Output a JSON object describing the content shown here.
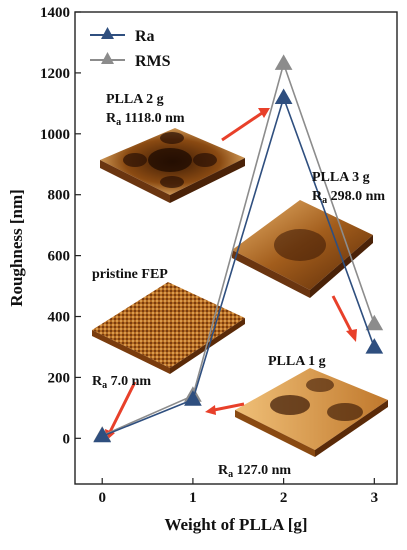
{
  "chart_data": {
    "type": "line",
    "title": "",
    "xlabel": "Weight of PLLA [g]",
    "ylabel": "Roughness [nm]",
    "x": [
      0,
      1,
      2,
      3
    ],
    "xlim": [
      -0.3,
      3.25
    ],
    "ylim": [
      -150,
      1400
    ],
    "yticks": [
      0,
      200,
      400,
      600,
      800,
      1000,
      1200,
      1400
    ],
    "xticks": [
      0,
      1,
      2,
      3
    ],
    "grid": false,
    "legend_position": "top-left",
    "series": [
      {
        "name": "Ra",
        "values": [
          7.0,
          127.0,
          1118.0,
          298.0
        ],
        "color": "#2f4f7f",
        "marker": "triangle-up"
      },
      {
        "name": "RMS",
        "values": [
          9.0,
          140.0,
          1230.0,
          375.0
        ],
        "color": "#8c8c8c",
        "marker": "triangle-up"
      }
    ],
    "annotations": [
      {
        "id": "plla2",
        "line1": "PLLA 2 g",
        "line2": "Ra 1118.0 nm",
        "label_pos": "upper-left",
        "image": "honeycomb-afm"
      },
      {
        "id": "plla3",
        "line1": "PLLA 3 g",
        "line2": "Ra 298.0 nm",
        "label_pos": "upper-right",
        "image": "smooth-afm"
      },
      {
        "id": "fep",
        "line1": "pristine FEP",
        "line2": "Ra 7.0 nm",
        "label_pos": "left",
        "image": "rough-afm"
      },
      {
        "id": "plla1",
        "line1": "PLLA 1 g",
        "line2": "Ra 127.0 nm",
        "label_pos": "lower-right",
        "image": "dimpled-afm"
      }
    ]
  }
}
